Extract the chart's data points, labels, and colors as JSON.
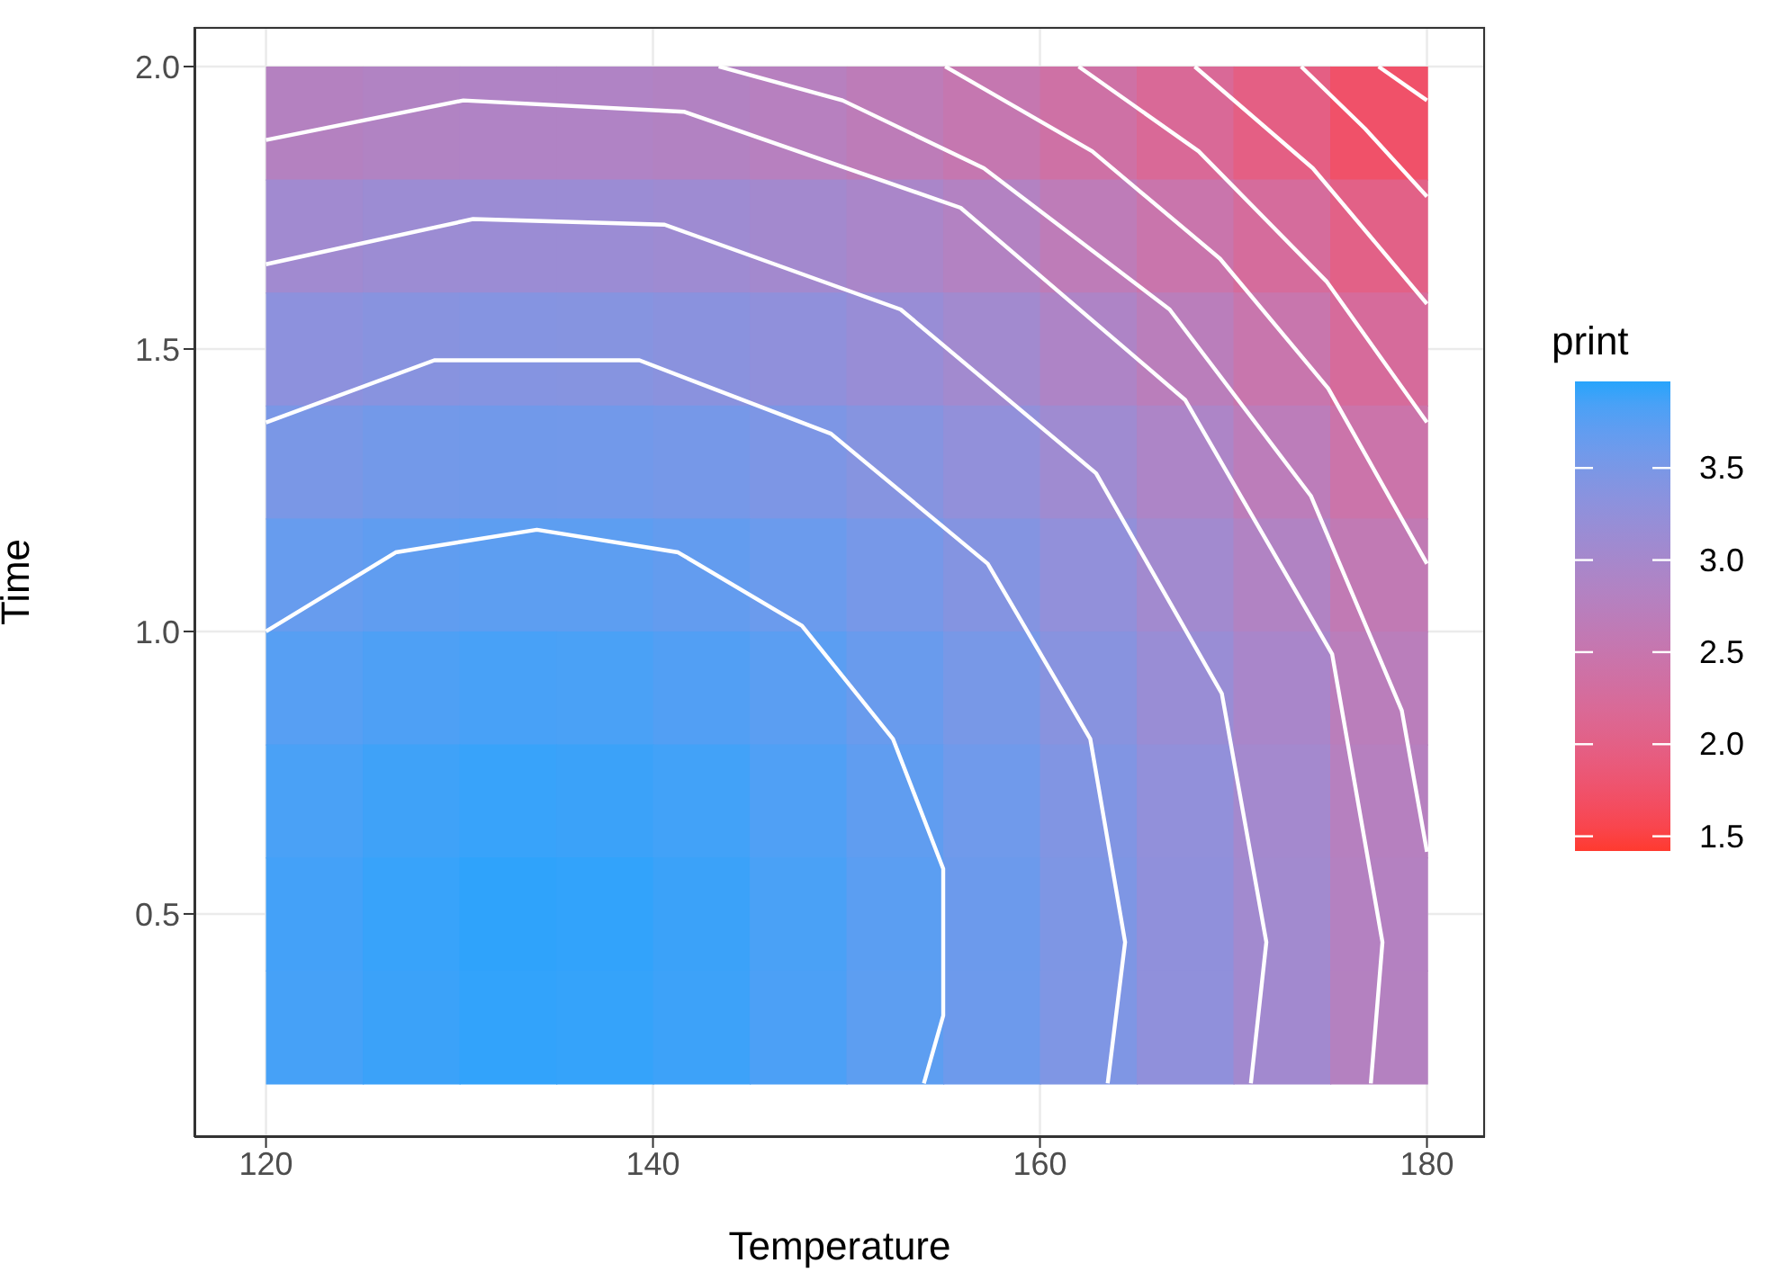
{
  "chart_data": {
    "type": "heatmap",
    "xlabel": "Temperature",
    "ylabel": "Time",
    "clabel": "print",
    "x": [
      122.5,
      127.5,
      132.5,
      137.5,
      142.5,
      147.5,
      152.5,
      157.5,
      162.5,
      167.5,
      172.5,
      177.5
    ],
    "y": [
      1.9,
      1.7,
      1.5,
      1.3,
      1.1,
      0.9,
      0.7,
      0.5,
      0.3
    ],
    "cells": [
      [
        2.8,
        2.85,
        2.87,
        2.87,
        2.83,
        2.77,
        2.67,
        2.54,
        2.39,
        2.2,
        1.99,
        1.74
      ],
      [
        3.07,
        3.13,
        3.15,
        3.14,
        3.11,
        3.04,
        2.95,
        2.82,
        2.66,
        2.48,
        2.26,
        2.02
      ],
      [
        3.31,
        3.36,
        3.39,
        3.38,
        3.34,
        3.28,
        3.18,
        3.06,
        2.9,
        2.71,
        2.5,
        2.25
      ],
      [
        3.5,
        3.56,
        3.58,
        3.57,
        3.54,
        3.47,
        3.38,
        3.25,
        3.09,
        2.91,
        2.69,
        2.45
      ],
      [
        3.66,
        3.71,
        3.73,
        3.73,
        3.69,
        3.63,
        3.53,
        3.4,
        3.25,
        3.06,
        2.85,
        2.6
      ],
      [
        3.77,
        3.82,
        3.85,
        3.84,
        3.8,
        3.74,
        3.64,
        3.52,
        3.36,
        3.17,
        2.96,
        2.71
      ],
      [
        3.84,
        3.89,
        3.92,
        3.91,
        3.88,
        3.81,
        3.71,
        3.59,
        3.43,
        3.25,
        3.03,
        2.78
      ],
      [
        3.87,
        3.92,
        3.95,
        3.94,
        3.91,
        3.84,
        3.74,
        3.62,
        3.46,
        3.28,
        3.06,
        2.81
      ],
      [
        3.86,
        3.91,
        3.94,
        3.93,
        3.9,
        3.83,
        3.73,
        3.61,
        3.45,
        3.27,
        3.05,
        2.8
      ]
    ],
    "colors": [
      "#ff3a2f",
      "#27a4fc"
    ],
    "clim": [
      1.42,
      3.97
    ],
    "cticks": [
      {
        "value": 1.5,
        "label": "1.5"
      },
      {
        "value": 2,
        "label": "2.0"
      },
      {
        "value": 2.5,
        "label": "2.5"
      },
      {
        "value": 3,
        "label": "3.0"
      },
      {
        "value": 3.5,
        "label": "3.5"
      }
    ],
    "series": [
      {
        "type": "line",
        "color": "#ffffff",
        "x": [
          120.0,
          126.7,
          134.0,
          141.3,
          147.7,
          152.4,
          155.0,
          155.0,
          154.0
        ],
        "values": [
          1.0,
          1.14,
          1.18,
          1.14,
          1.01,
          0.81,
          0.58,
          0.32,
          0.2
        ]
      },
      {
        "type": "line",
        "color": "#ffffff",
        "x": [
          120.0,
          128.7,
          139.3,
          149.2,
          157.3,
          162.6,
          164.4,
          163.5
        ],
        "values": [
          1.37,
          1.48,
          1.48,
          1.35,
          1.12,
          0.81,
          0.45,
          0.2
        ]
      },
      {
        "type": "line",
        "color": "#ffffff",
        "x": [
          120.0,
          130.7,
          140.6,
          152.8,
          162.9,
          169.4,
          171.7,
          170.9
        ],
        "values": [
          1.65,
          1.73,
          1.72,
          1.57,
          1.28,
          0.89,
          0.45,
          0.2
        ]
      },
      {
        "type": "line",
        "color": "#ffffff",
        "x": [
          120.0,
          130.2,
          141.6,
          155.9,
          167.5,
          175.1,
          177.7,
          177.1
        ],
        "values": [
          1.87,
          1.94,
          1.92,
          1.75,
          1.41,
          0.96,
          0.45,
          0.2
        ]
      },
      {
        "type": "line",
        "color": "#ffffff",
        "x": [
          143.4,
          149.8,
          157.1,
          166.7,
          174.0,
          178.7,
          180.0
        ],
        "values": [
          2.0,
          1.94,
          1.82,
          1.57,
          1.24,
          0.86,
          0.61
        ]
      },
      {
        "type": "line",
        "color": "#ffffff",
        "x": [
          155.1,
          162.7,
          169.3,
          174.9,
          180.0
        ],
        "values": [
          2.0,
          1.85,
          1.66,
          1.43,
          1.12
        ]
      },
      {
        "type": "line",
        "color": "#ffffff",
        "x": [
          162.0,
          168.2,
          174.8,
          180.0
        ],
        "values": [
          2.0,
          1.85,
          1.62,
          1.37
        ]
      },
      {
        "type": "line",
        "color": "#ffffff",
        "x": [
          168.0,
          174.1,
          180.0
        ],
        "values": [
          2.0,
          1.82,
          1.58
        ]
      },
      {
        "type": "line",
        "color": "#ffffff",
        "x": [
          173.5,
          176.8,
          180.0
        ],
        "values": [
          2.0,
          1.89,
          1.77
        ]
      },
      {
        "type": "line",
        "color": "#ffffff",
        "x": [
          177.5,
          180.0
        ],
        "values": [
          2.0,
          1.94
        ]
      }
    ],
    "xlim": [
      116.3,
      183.0
    ],
    "xticks": [
      120,
      140,
      160,
      180
    ],
    "ylim": [
      0.105,
      2.07
    ],
    "yticks": [
      0.5,
      {
        "value": 1,
        "label": "1.0"
      },
      1.5,
      {
        "value": 2,
        "label": "2.0"
      }
    ],
    "grid": true
  }
}
